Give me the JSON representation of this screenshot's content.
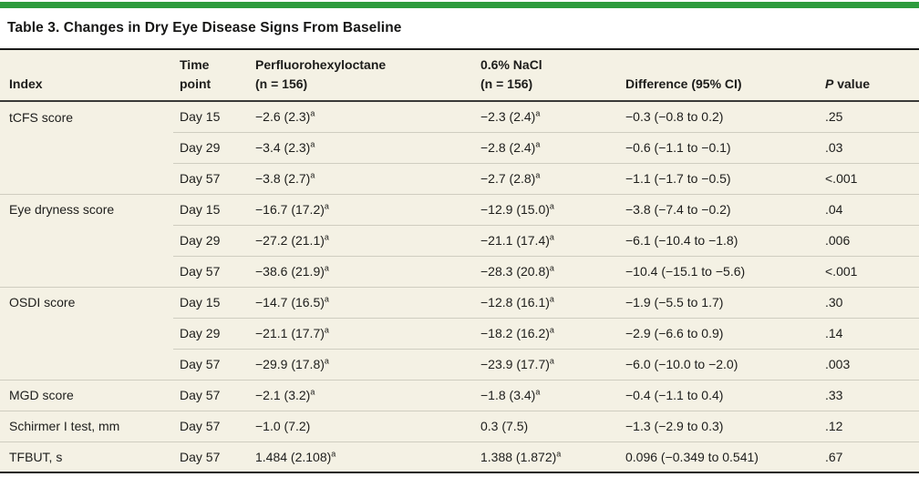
{
  "accent_color": "#2e9b3d",
  "table_background_color": "#f4f1e4",
  "title": "Table 3. Changes in Dry Eye Disease Signs From Baseline",
  "table": {
    "columns": {
      "index": "Index",
      "time_line1": "Time",
      "time_line2": "point",
      "drug_line1": "Perfluorohexyloctane",
      "drug_line2": "(n = 156)",
      "control_line1": "0.6% NaCl",
      "control_line2": "(n = 156)",
      "difference": "Difference (95% CI)",
      "p_italic": "P",
      "p_rest": "value"
    },
    "footnote_marker": "a",
    "rows": [
      {
        "index": "tCFS score",
        "time": "Day 15",
        "drug": "−2.6 (2.3)",
        "drug_sup": "a",
        "control": "−2.3 (2.4)",
        "control_sup": "a",
        "difference": "−0.3 (−0.8 to 0.2)",
        "p": ".25"
      },
      {
        "index": "",
        "time": "Day 29",
        "drug": "−3.4 (2.3)",
        "drug_sup": "a",
        "control": "−2.8 (2.4)",
        "control_sup": "a",
        "difference": "−0.6 (−1.1 to −0.1)",
        "p": ".03"
      },
      {
        "index": "",
        "time": "Day 57",
        "drug": "−3.8 (2.7)",
        "drug_sup": "a",
        "control": "−2.7 (2.8)",
        "control_sup": "a",
        "difference": "−1.1 (−1.7 to −0.5)",
        "p": "<.001"
      },
      {
        "index": "Eye dryness score",
        "time": "Day 15",
        "drug": "−16.7 (17.2)",
        "drug_sup": "a",
        "control": "−12.9 (15.0)",
        "control_sup": "a",
        "difference": "−3.8 (−7.4 to −0.2)",
        "p": ".04"
      },
      {
        "index": "",
        "time": "Day 29",
        "drug": "−27.2 (21.1)",
        "drug_sup": "a",
        "control": "−21.1 (17.4)",
        "control_sup": "a",
        "difference": "−6.1 (−10.4 to −1.8)",
        "p": ".006"
      },
      {
        "index": "",
        "time": "Day 57",
        "drug": "−38.6 (21.9)",
        "drug_sup": "a",
        "control": "−28.3 (20.8)",
        "control_sup": "a",
        "difference": "−10.4 (−15.1 to −5.6)",
        "p": "<.001"
      },
      {
        "index": "OSDI score",
        "time": "Day 15",
        "drug": "−14.7 (16.5)",
        "drug_sup": "a",
        "control": "−12.8 (16.1)",
        "control_sup": "a",
        "difference": "−1.9 (−5.5 to 1.7)",
        "p": ".30"
      },
      {
        "index": "",
        "time": "Day 29",
        "drug": "−21.1 (17.7)",
        "drug_sup": "a",
        "control": "−18.2 (16.2)",
        "control_sup": "a",
        "difference": "−2.9 (−6.6 to 0.9)",
        "p": ".14"
      },
      {
        "index": "",
        "time": "Day 57",
        "drug": "−29.9 (17.8)",
        "drug_sup": "a",
        "control": "−23.9 (17.7)",
        "control_sup": "a",
        "difference": "−6.0 (−10.0 to −2.0)",
        "p": ".003"
      },
      {
        "index": "MGD score",
        "time": "Day 57",
        "drug": "−2.1 (3.2)",
        "drug_sup": "a",
        "control": "−1.8 (3.4)",
        "control_sup": "a",
        "difference": "−0.4 (−1.1 to 0.4)",
        "p": ".33"
      },
      {
        "index": "Schirmer I test, mm",
        "time": "Day 57",
        "drug": "−1.0 (7.2)",
        "drug_sup": "",
        "control": "0.3 (7.5)",
        "control_sup": "",
        "difference": "−1.3 (−2.9 to 0.3)",
        "p": ".12"
      },
      {
        "index": "TFBUT, s",
        "time": "Day 57",
        "drug": "1.484 (2.108)",
        "drug_sup": "a",
        "control": "1.388 (1.872)",
        "control_sup": "a",
        "difference": "0.096 (−0.349 to 0.541)",
        "p": ".67"
      }
    ]
  }
}
